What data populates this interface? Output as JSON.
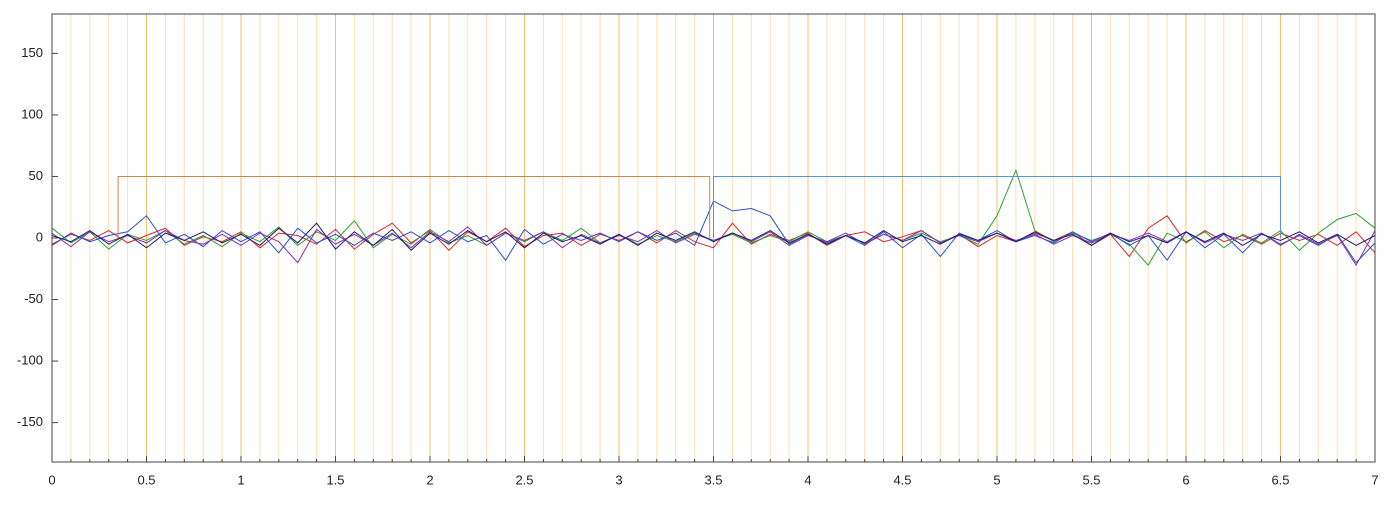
{
  "chart_data": {
    "type": "line",
    "x": [
      0,
      0.1,
      0.2,
      0.3,
      0.4,
      0.5,
      0.6,
      0.7,
      0.8,
      0.9,
      1,
      1.1,
      1.2,
      1.3,
      1.4,
      1.5,
      1.6,
      1.7,
      1.8,
      1.9,
      2,
      2.1,
      2.2,
      2.3,
      2.4,
      2.5,
      2.6,
      2.7,
      2.8,
      2.9,
      3,
      3.1,
      3.2,
      3.3,
      3.4,
      3.5,
      3.6,
      3.7,
      3.8,
      3.9,
      4,
      4.1,
      4.2,
      4.3,
      4.4,
      4.5,
      4.6,
      4.7,
      4.8,
      4.9,
      5,
      5.1,
      5.2,
      5.3,
      5.4,
      5.5,
      5.6,
      5.7,
      5.8,
      5.9,
      6,
      6.1,
      6.2,
      6.3,
      6.4,
      6.5,
      6.6,
      6.7,
      6.8,
      6.9,
      7
    ],
    "series": [
      {
        "color": "#d62728",
        "values": [
          -5,
          3,
          -2,
          6,
          -4,
          2,
          8,
          -6,
          1,
          -3,
          5,
          -8,
          4,
          2,
          -5,
          7,
          -9,
          3,
          12,
          -4,
          6,
          -10,
          5,
          -3,
          8,
          -7,
          2,
          4,
          -6,
          3,
          -2,
          5,
          -4,
          6,
          -3,
          -8,
          12,
          -5,
          3,
          -2,
          4,
          -6,
          2,
          5,
          -3,
          1,
          6,
          -4,
          3,
          -7,
          2,
          -3,
          4,
          -2,
          5,
          -6,
          3,
          -15,
          8,
          18,
          -4,
          6,
          -3,
          2,
          -5,
          4,
          -2,
          3,
          -6,
          5,
          -12
        ]
      },
      {
        "color": "#2ca02c",
        "values": [
          8,
          -4,
          5,
          -9,
          3,
          -2,
          6,
          -5,
          2,
          -7,
          4,
          -3,
          9,
          -6,
          5,
          -2,
          14,
          -8,
          3,
          -5,
          7,
          -4,
          2,
          -6,
          4,
          -3,
          5,
          -2,
          8,
          -4,
          3,
          -5,
          2,
          -3,
          4,
          -2,
          3,
          -4,
          2,
          -3,
          5,
          -3,
          2,
          -4,
          3,
          -2,
          4,
          -3,
          2,
          -5,
          18,
          55,
          6,
          -3,
          4,
          -2,
          3,
          -5,
          -22,
          4,
          -3,
          5,
          -8,
          3,
          -4,
          6,
          -10,
          4,
          15,
          20,
          8
        ]
      },
      {
        "color": "#2550d8",
        "values": [
          -6,
          4,
          -3,
          2,
          5,
          18,
          -4,
          3,
          -7,
          6,
          -3,
          5,
          -12,
          8,
          -4,
          3,
          -6,
          4,
          -2,
          5,
          -4,
          6,
          -3,
          2,
          -18,
          7,
          -5,
          3,
          -2,
          4,
          -3,
          5,
          -2,
          4,
          -6,
          30,
          22,
          24,
          18,
          -5,
          3,
          -4,
          2,
          -6,
          5,
          -8,
          3,
          -15,
          4,
          -2,
          6,
          -3,
          2,
          -4,
          5,
          -3,
          4,
          -6,
          2,
          -18,
          5,
          -8,
          3,
          -12,
          4,
          -5,
          2,
          -6,
          3,
          -20,
          -4
        ]
      },
      {
        "color": "#8a2fb0",
        "values": [
          4,
          -7,
          5,
          -3,
          2,
          -4,
          6,
          -2,
          -5,
          3,
          -6,
          4,
          -3,
          -20,
          7,
          -5,
          3,
          -6,
          4,
          -8,
          5,
          -3,
          9,
          -6,
          4,
          -2,
          5,
          -8,
          3,
          -4,
          2,
          -3,
          6,
          -4,
          3,
          -2,
          4,
          -3,
          5,
          -6,
          2,
          -3,
          4,
          -5,
          3,
          -2,
          6,
          -4,
          2,
          -3,
          4,
          -2,
          3,
          -5,
          2,
          -4,
          3,
          -2,
          4,
          -3,
          5,
          -4,
          3,
          -2,
          4,
          -6,
          3,
          -5,
          2,
          -22,
          6
        ]
      },
      {
        "color": "#1a1f6e",
        "values": [
          2,
          -3,
          6,
          -5,
          3,
          -8,
          4,
          -2,
          5,
          -4,
          3,
          -6,
          8,
          -4,
          12,
          -9,
          5,
          -6,
          7,
          -10,
          4,
          -5,
          6,
          -3,
          5,
          -8,
          4,
          -3,
          2,
          -5,
          3,
          -6,
          4,
          -2,
          5,
          -3,
          4,
          -2,
          6,
          -4,
          3,
          -5,
          2,
          -4,
          6,
          -3,
          2,
          -5,
          3,
          -2,
          4,
          -3,
          5,
          -2,
          3,
          -6,
          4,
          -3,
          2,
          -4,
          5,
          -3,
          4,
          -6,
          3,
          -2,
          5,
          -4,
          3,
          -6,
          2
        ]
      },
      {
        "color": "#c8884a",
        "x": [
          0.35,
          0.35,
          3.48,
          3.48
        ],
        "values": [
          0,
          50,
          50,
          0
        ]
      },
      {
        "color": "#5b8fd6",
        "x": [
          3.5,
          3.5,
          6.5,
          6.5
        ],
        "values": [
          0,
          50,
          50,
          0
        ]
      }
    ],
    "xlim": [
      0,
      7
    ],
    "ylim": [
      -182,
      182
    ],
    "xticks": [
      0,
      0.5,
      1,
      1.5,
      2,
      2.5,
      3,
      3.5,
      4,
      4.5,
      5,
      5.5,
      6,
      6.5,
      7
    ],
    "x_minor_ticks": [
      0.1,
      0.2,
      0.3,
      0.4,
      0.6,
      0.7,
      0.8,
      0.9,
      1.1,
      1.2,
      1.3,
      1.4,
      1.6,
      1.7,
      1.8,
      1.9,
      2.1,
      2.2,
      2.3,
      2.4,
      2.6,
      2.7,
      2.8,
      2.9,
      3.1,
      3.2,
      3.3,
      3.4,
      3.6,
      3.7,
      3.8,
      3.9,
      4.1,
      4.2,
      4.3,
      4.4,
      4.6,
      4.7,
      4.8,
      4.9,
      5.1,
      5.2,
      5.3,
      5.4,
      5.6,
      5.7,
      5.8,
      5.9,
      6.1,
      6.2,
      6.3,
      6.4,
      6.6,
      6.7,
      6.8,
      6.9
    ],
    "yticks": [
      -150,
      -100,
      -50,
      0,
      50,
      100,
      150
    ],
    "grid": true
  }
}
